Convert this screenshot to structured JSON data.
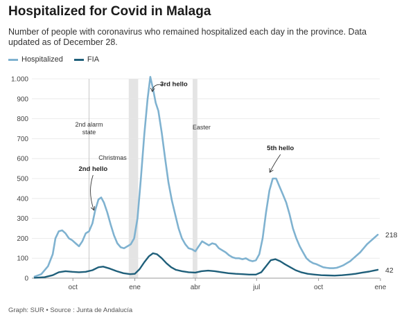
{
  "title": "Hospitalized for Covid in Malaga",
  "subtitle": "Number of people with coronavirus who remained hospitalized each day in the province. Data updated as of December 28.",
  "footer": "Graph: SUR • Source : Junta de Andalucía",
  "colors": {
    "hospitalized": "#7fb2d0",
    "fia": "#1f5f7a",
    "band": "#e4e4e4",
    "grid": "#e6e6e6"
  },
  "chart_data": {
    "type": "line",
    "title": "Hospitalized for Covid in Malaga",
    "xlabel": "",
    "ylabel": "",
    "ylim": [
      0,
      1000
    ],
    "yticks": [
      0,
      100,
      200,
      300,
      400,
      500,
      600,
      700,
      800,
      900,
      1000
    ],
    "ytick_labels": [
      "0",
      "100",
      "200",
      "300",
      "400",
      "500",
      "600",
      "700",
      "800",
      "900",
      "1.000"
    ],
    "x_range": [
      "2020-08-01",
      "2021-12-31"
    ],
    "xticks": [
      {
        "date": "2020-10-01",
        "label": "oct"
      },
      {
        "date": "2021-01-01",
        "label": "ene"
      },
      {
        "date": "2021-04-01",
        "label": "abr"
      },
      {
        "date": "2021-07-01",
        "label": "jul"
      },
      {
        "date": "2021-10-01",
        "label": "oct"
      },
      {
        "date": "2022-01-01",
        "label": "ene"
      }
    ],
    "grid": true,
    "legend_position": "top-left",
    "series": [
      {
        "name": "Hospitalized",
        "points": [
          [
            "2020-08-05",
            8
          ],
          [
            "2020-08-15",
            20
          ],
          [
            "2020-08-25",
            60
          ],
          [
            "2020-09-01",
            120
          ],
          [
            "2020-09-05",
            200
          ],
          [
            "2020-09-10",
            235
          ],
          [
            "2020-09-15",
            240
          ],
          [
            "2020-09-20",
            225
          ],
          [
            "2020-09-25",
            200
          ],
          [
            "2020-09-30",
            190
          ],
          [
            "2020-10-05",
            175
          ],
          [
            "2020-10-10",
            160
          ],
          [
            "2020-10-15",
            185
          ],
          [
            "2020-10-20",
            225
          ],
          [
            "2020-10-25",
            235
          ],
          [
            "2020-10-30",
            275
          ],
          [
            "2020-11-03",
            340
          ],
          [
            "2020-11-08",
            395
          ],
          [
            "2020-11-12",
            405
          ],
          [
            "2020-11-16",
            380
          ],
          [
            "2020-11-21",
            330
          ],
          [
            "2020-11-26",
            270
          ],
          [
            "2020-12-01",
            215
          ],
          [
            "2020-12-06",
            175
          ],
          [
            "2020-12-11",
            155
          ],
          [
            "2020-12-16",
            150
          ],
          [
            "2020-12-21",
            160
          ],
          [
            "2020-12-26",
            170
          ],
          [
            "2020-12-31",
            200
          ],
          [
            "2021-01-05",
            300
          ],
          [
            "2021-01-10",
            500
          ],
          [
            "2021-01-15",
            720
          ],
          [
            "2021-01-20",
            900
          ],
          [
            "2021-01-24",
            1010
          ],
          [
            "2021-01-28",
            950
          ],
          [
            "2021-02-01",
            880
          ],
          [
            "2021-02-05",
            840
          ],
          [
            "2021-02-10",
            730
          ],
          [
            "2021-02-15",
            600
          ],
          [
            "2021-02-20",
            480
          ],
          [
            "2021-02-25",
            390
          ],
          [
            "2021-03-02",
            320
          ],
          [
            "2021-03-07",
            250
          ],
          [
            "2021-03-12",
            200
          ],
          [
            "2021-03-17",
            170
          ],
          [
            "2021-03-22",
            150
          ],
          [
            "2021-03-27",
            145
          ],
          [
            "2021-04-01",
            135
          ],
          [
            "2021-04-06",
            160
          ],
          [
            "2021-04-11",
            185
          ],
          [
            "2021-04-16",
            175
          ],
          [
            "2021-04-21",
            165
          ],
          [
            "2021-04-26",
            175
          ],
          [
            "2021-05-01",
            170
          ],
          [
            "2021-05-06",
            150
          ],
          [
            "2021-05-11",
            140
          ],
          [
            "2021-05-16",
            130
          ],
          [
            "2021-05-21",
            115
          ],
          [
            "2021-05-26",
            105
          ],
          [
            "2021-05-31",
            100
          ],
          [
            "2021-06-05",
            100
          ],
          [
            "2021-06-10",
            95
          ],
          [
            "2021-06-15",
            100
          ],
          [
            "2021-06-20",
            90
          ],
          [
            "2021-06-25",
            85
          ],
          [
            "2021-06-30",
            90
          ],
          [
            "2021-07-05",
            120
          ],
          [
            "2021-07-10",
            200
          ],
          [
            "2021-07-15",
            330
          ],
          [
            "2021-07-20",
            440
          ],
          [
            "2021-07-25",
            500
          ],
          [
            "2021-07-30",
            500
          ],
          [
            "2021-08-04",
            460
          ],
          [
            "2021-08-09",
            420
          ],
          [
            "2021-08-14",
            380
          ],
          [
            "2021-08-19",
            320
          ],
          [
            "2021-08-24",
            250
          ],
          [
            "2021-08-29",
            200
          ],
          [
            "2021-09-03",
            160
          ],
          [
            "2021-09-08",
            130
          ],
          [
            "2021-09-13",
            100
          ],
          [
            "2021-09-18",
            85
          ],
          [
            "2021-09-23",
            75
          ],
          [
            "2021-09-28",
            70
          ],
          [
            "2021-10-03",
            62
          ],
          [
            "2021-10-08",
            55
          ],
          [
            "2021-10-13",
            52
          ],
          [
            "2021-10-18",
            50
          ],
          [
            "2021-10-23",
            50
          ],
          [
            "2021-10-28",
            52
          ],
          [
            "2021-11-02",
            58
          ],
          [
            "2021-11-07",
            65
          ],
          [
            "2021-11-12",
            75
          ],
          [
            "2021-11-17",
            85
          ],
          [
            "2021-11-22",
            100
          ],
          [
            "2021-11-27",
            115
          ],
          [
            "2021-12-02",
            130
          ],
          [
            "2021-12-07",
            150
          ],
          [
            "2021-12-12",
            170
          ],
          [
            "2021-12-17",
            185
          ],
          [
            "2021-12-22",
            200
          ],
          [
            "2021-12-28",
            218
          ]
        ],
        "last_value_label": "218"
      },
      {
        "name": "FIA",
        "points": [
          [
            "2020-08-05",
            2
          ],
          [
            "2020-08-20",
            5
          ],
          [
            "2020-09-01",
            15
          ],
          [
            "2020-09-10",
            30
          ],
          [
            "2020-09-20",
            35
          ],
          [
            "2020-09-30",
            32
          ],
          [
            "2020-10-10",
            30
          ],
          [
            "2020-10-20",
            32
          ],
          [
            "2020-10-30",
            40
          ],
          [
            "2020-11-08",
            55
          ],
          [
            "2020-11-15",
            58
          ],
          [
            "2020-11-25",
            48
          ],
          [
            "2020-12-05",
            35
          ],
          [
            "2020-12-15",
            25
          ],
          [
            "2020-12-25",
            20
          ],
          [
            "2021-01-01",
            22
          ],
          [
            "2021-01-08",
            45
          ],
          [
            "2021-01-15",
            80
          ],
          [
            "2021-01-22",
            110
          ],
          [
            "2021-01-28",
            125
          ],
          [
            "2021-02-03",
            120
          ],
          [
            "2021-02-10",
            100
          ],
          [
            "2021-02-17",
            75
          ],
          [
            "2021-02-24",
            55
          ],
          [
            "2021-03-03",
            42
          ],
          [
            "2021-03-12",
            35
          ],
          [
            "2021-03-22",
            30
          ],
          [
            "2021-04-01",
            28
          ],
          [
            "2021-04-10",
            35
          ],
          [
            "2021-04-20",
            38
          ],
          [
            "2021-04-30",
            35
          ],
          [
            "2021-05-10",
            30
          ],
          [
            "2021-05-20",
            25
          ],
          [
            "2021-05-31",
            22
          ],
          [
            "2021-06-10",
            20
          ],
          [
            "2021-06-20",
            18
          ],
          [
            "2021-06-30",
            18
          ],
          [
            "2021-07-08",
            30
          ],
          [
            "2021-07-15",
            60
          ],
          [
            "2021-07-22",
            90
          ],
          [
            "2021-07-29",
            95
          ],
          [
            "2021-08-05",
            85
          ],
          [
            "2021-08-12",
            70
          ],
          [
            "2021-08-20",
            55
          ],
          [
            "2021-08-28",
            40
          ],
          [
            "2021-09-05",
            30
          ],
          [
            "2021-09-15",
            22
          ],
          [
            "2021-09-25",
            18
          ],
          [
            "2021-10-05",
            15
          ],
          [
            "2021-10-15",
            14
          ],
          [
            "2021-10-25",
            13
          ],
          [
            "2021-11-05",
            15
          ],
          [
            "2021-11-15",
            18
          ],
          [
            "2021-11-25",
            22
          ],
          [
            "2021-12-05",
            28
          ],
          [
            "2021-12-15",
            33
          ],
          [
            "2021-12-22",
            38
          ],
          [
            "2021-12-28",
            42
          ]
        ],
        "last_value_label": "42"
      }
    ],
    "bands": [
      {
        "start": "2020-12-23",
        "end": "2021-01-06",
        "label": "Christmas"
      },
      {
        "start": "2021-03-28",
        "end": "2021-04-04",
        "label": "Easter"
      }
    ],
    "vlines": [
      {
        "date": "2020-10-25",
        "label_lines": [
          "2nd alarm",
          "state"
        ]
      }
    ],
    "annotations": [
      {
        "text": "2nd hello",
        "date": "2020-11-02",
        "value": 330
      },
      {
        "text": "3rd hello",
        "date": "2021-01-24",
        "value": 960
      },
      {
        "text": "5th hello",
        "date": "2021-07-22",
        "value": 520
      }
    ]
  }
}
